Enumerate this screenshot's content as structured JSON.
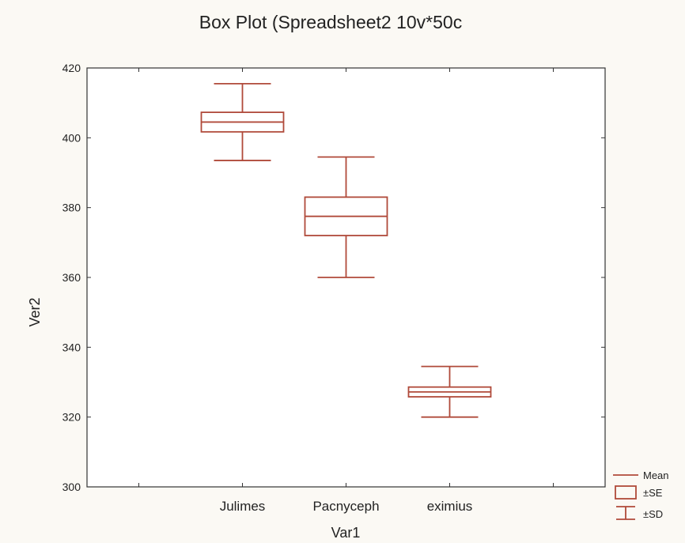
{
  "chart_data": {
    "type": "box",
    "title": "Box Plot (Spreadsheet2 10v*50c",
    "xlabel": "Var1",
    "ylabel": "Ver2",
    "ylim": [
      300,
      420
    ],
    "yticks": [
      300,
      320,
      340,
      360,
      380,
      400,
      420
    ],
    "categories": [
      "Julimes",
      "Pacnyceph",
      "eximius"
    ],
    "boxes": [
      {
        "category": "Julimes",
        "mean": 404.5,
        "se_low": 401.7,
        "se_high": 407.3,
        "sd_low": 393.5,
        "sd_high": 415.5
      },
      {
        "category": "Pacnyceph",
        "mean": 377.5,
        "se_low": 372.0,
        "se_high": 383.0,
        "sd_low": 360.0,
        "sd_high": 394.5
      },
      {
        "category": "eximius",
        "mean": 327.2,
        "se_low": 325.8,
        "se_high": 328.6,
        "sd_low": 320.0,
        "sd_high": 334.5
      }
    ],
    "legend": {
      "position": "bottom-right",
      "items": [
        "Mean",
        "±SE",
        "±SD"
      ]
    },
    "grid": false,
    "colors": {
      "box": "#b04a3a",
      "axis": "#333333"
    }
  }
}
